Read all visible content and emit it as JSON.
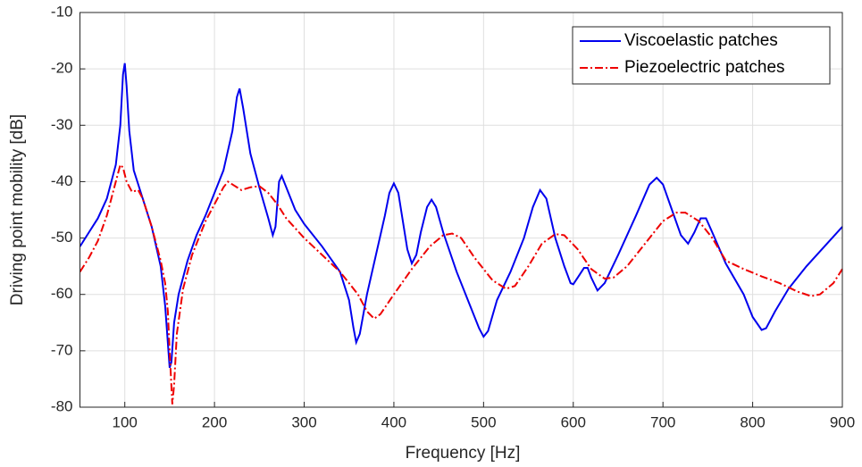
{
  "chart_data": {
    "type": "line",
    "xlabel": "Frequency [Hz]",
    "ylabel": "Driving point mobility [dB]",
    "xlim": [
      50,
      900
    ],
    "ylim": [
      -80,
      -10
    ],
    "xticks": [
      100,
      200,
      300,
      400,
      500,
      600,
      700,
      800,
      900
    ],
    "yticks": [
      -80,
      -70,
      -60,
      -50,
      -40,
      -30,
      -20,
      -10
    ],
    "grid": true,
    "legend": "upper right",
    "series": [
      {
        "name": "Viscoelastic patches",
        "color": "#0000ee",
        "style": "solid",
        "x": [
          50,
          60,
          70,
          80,
          90,
          95,
          98,
          100,
          102,
          105,
          110,
          120,
          130,
          140,
          145,
          150,
          152,
          155,
          160,
          170,
          180,
          190,
          200,
          210,
          220,
          225,
          228,
          232,
          240,
          250,
          260,
          265,
          268,
          272,
          275,
          280,
          290,
          300,
          320,
          340,
          350,
          355,
          358,
          362,
          370,
          380,
          390,
          395,
          400,
          405,
          410,
          415,
          420,
          425,
          430,
          437,
          442,
          447,
          455,
          470,
          485,
          495,
          500,
          505,
          515,
          530,
          545,
          555,
          563,
          570,
          580,
          590,
          597,
          600,
          605,
          612,
          616,
          620,
          627,
          635,
          650,
          670,
          685,
          693,
          700,
          710,
          720,
          728,
          735,
          742,
          748,
          755,
          770,
          790,
          800,
          810,
          815,
          825,
          840,
          860,
          880,
          900
        ],
        "values": [
          -51.5,
          -49,
          -46.5,
          -43,
          -37,
          -30,
          -21,
          -19,
          -23,
          -31,
          -38,
          -43,
          -48,
          -55,
          -62,
          -73,
          -72,
          -65,
          -60,
          -54,
          -49.5,
          -46,
          -42,
          -38,
          -31,
          -25,
          -23.5,
          -27,
          -35,
          -41,
          -46.5,
          -49.5,
          -48,
          -40,
          -39,
          -41,
          -45,
          -47.5,
          -51.5,
          -56,
          -61,
          -66,
          -68.5,
          -67,
          -60,
          -53,
          -46,
          -42,
          -40.3,
          -42,
          -47,
          -52,
          -54.5,
          -53,
          -49,
          -44.5,
          -43.2,
          -44.5,
          -49,
          -56,
          -62,
          -66,
          -67.5,
          -66.5,
          -61,
          -56,
          -50,
          -44.5,
          -41.5,
          -43,
          -50,
          -55,
          -58,
          -58.2,
          -57,
          -55.3,
          -55.3,
          -57,
          -59.3,
          -58,
          -53,
          -46,
          -40.5,
          -39.3,
          -40.5,
          -45,
          -49.5,
          -51,
          -49,
          -46.5,
          -46.5,
          -49,
          -54.5,
          -60,
          -64,
          -66.3,
          -66,
          -63,
          -59,
          -55,
          -51.5,
          -48
        ]
      },
      {
        "name": "Piezoelectric patches",
        "color": "#ee0000",
        "style": "dashdot",
        "x": [
          50,
          60,
          70,
          80,
          90,
          95,
          98,
          102,
          108,
          115,
          120,
          130,
          140,
          145,
          148,
          150,
          153,
          155,
          158,
          165,
          175,
          190,
          200,
          210,
          215,
          220,
          230,
          240,
          250,
          260,
          270,
          280,
          300,
          320,
          340,
          360,
          370,
          378,
          385,
          400,
          420,
          440,
          455,
          465,
          475,
          490,
          510,
          525,
          535,
          550,
          565,
          580,
          590,
          605,
          620,
          635,
          645,
          660,
          680,
          700,
          715,
          725,
          740,
          755,
          770,
          790,
          810,
          830,
          850,
          865,
          875,
          890,
          900
        ],
        "values": [
          -56,
          -53.5,
          -50.5,
          -46,
          -40,
          -37,
          -37.5,
          -40,
          -41.8,
          -41.5,
          -43,
          -48,
          -54,
          -58,
          -63,
          -70,
          -79.5,
          -76,
          -67,
          -59,
          -53,
          -47,
          -44,
          -41,
          -40,
          -40.5,
          -41.5,
          -41,
          -40.8,
          -42,
          -44,
          -46.5,
          -50,
          -53,
          -56,
          -60,
          -63,
          -64.3,
          -63.5,
          -60,
          -55.5,
          -51.5,
          -49.5,
          -49.2,
          -50,
          -53.5,
          -57.5,
          -59,
          -58.5,
          -55,
          -51,
          -49.3,
          -49.5,
          -52,
          -55.5,
          -57.2,
          -57,
          -55,
          -51,
          -47,
          -45.5,
          -45.5,
          -47,
          -50,
          -54,
          -55.5,
          -56.8,
          -58,
          -59.5,
          -60.3,
          -60,
          -58,
          -55.5
        ]
      }
    ]
  }
}
